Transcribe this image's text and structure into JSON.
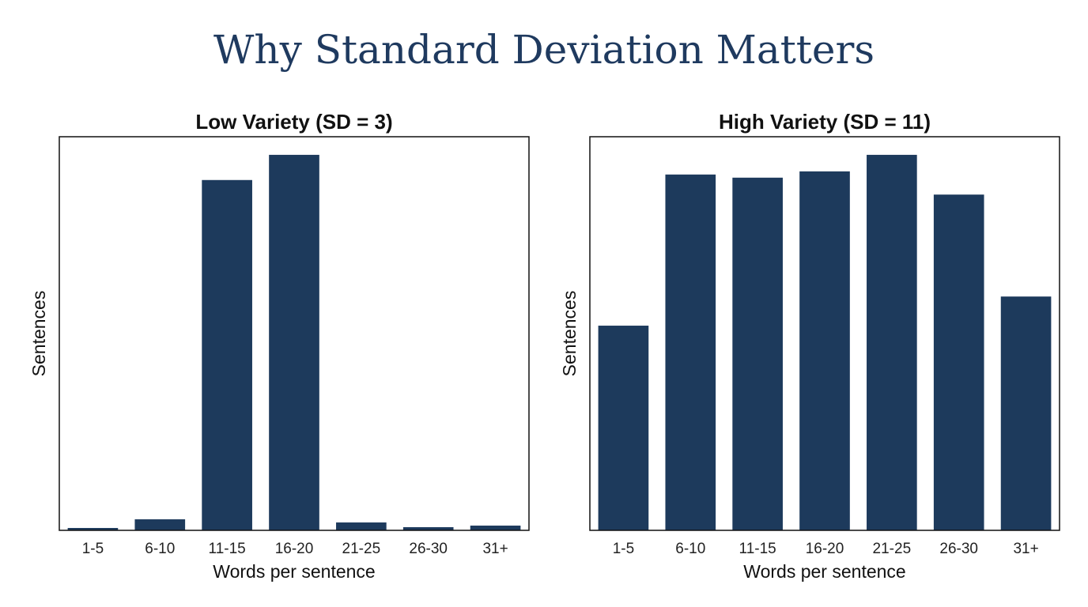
{
  "title": "Why Standard Deviation Matters",
  "chart_data": [
    {
      "type": "bar",
      "title": "Low Variety (SD = 3)",
      "x_label": "Words per sentence",
      "y_label": "Sentences",
      "categories": [
        "1-5",
        "6-10",
        "11-15",
        "16-20",
        "21-25",
        "26-30",
        "31+"
      ],
      "values": [
        0.6,
        2.8,
        89,
        95.4,
        2,
        0.8,
        1.2
      ],
      "color": "#1d3a5c",
      "ylim": [
        0,
        100
      ]
    },
    {
      "type": "bar",
      "title": "High Variety (SD = 11)",
      "x_label": "Words per sentence",
      "y_label": "Sentences",
      "categories": [
        "1-5",
        "6-10",
        "11-15",
        "16-20",
        "21-25",
        "26-30",
        "31+"
      ],
      "values": [
        52,
        90.4,
        89.6,
        91.2,
        95.4,
        85.3,
        59.4
      ],
      "color": "#1d3a5c",
      "ylim": [
        0,
        100
      ]
    }
  ]
}
